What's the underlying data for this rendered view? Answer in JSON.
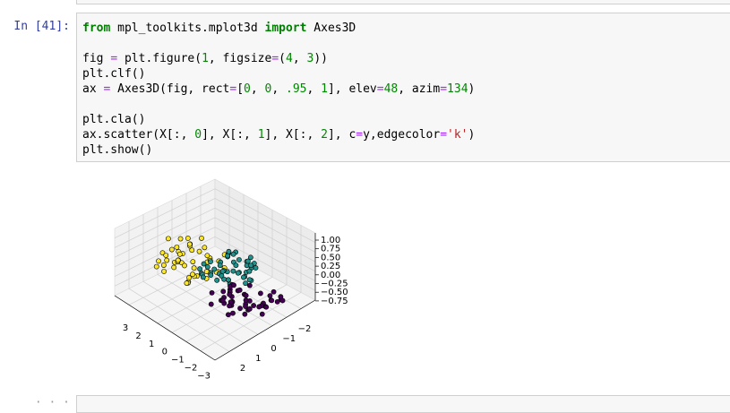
{
  "cell": {
    "prompt": "In [41]:",
    "code": [
      [
        "from mpl_toolkits.mplot3d import Axes3D"
      ],
      [
        "fig = plt.figure(1, figsize=(4, 3))",
        "plt.clf()",
        "ax = Axes3D(fig, rect=[0, 0, .95, 1], elev=48, azim=134)"
      ],
      [
        "plt.cla()",
        "ax.scatter(X[:, 0], X[:, 1], X[:, 2], c=y,edgecolor='k')",
        "plt.show()"
      ]
    ]
  },
  "output": {
    "xticks": [
      3,
      2,
      1,
      0,
      {
        "value": -1,
        "label": "−1"
      },
      {
        "value": -2,
        "label": "−2"
      },
      {
        "value": -3,
        "label": "−3"
      }
    ],
    "yticks": [
      2,
      1,
      0,
      {
        "value": -1,
        "label": "−1"
      },
      {
        "value": -2,
        "label": "−2"
      }
    ],
    "zticks": [
      {
        "value": 1,
        "label": "1.00"
      },
      {
        "value": 0.75,
        "label": "0.75"
      },
      {
        "value": 0.5,
        "label": "0.50"
      },
      {
        "value": 0.25,
        "label": "0.25"
      },
      {
        "value": 0,
        "label": "0.00"
      },
      {
        "value": -0.25,
        "label": "−0.25"
      },
      {
        "value": -0.5,
        "label": "−0.50"
      },
      {
        "value": -0.75,
        "label": "−0.75"
      }
    ]
  }
}
